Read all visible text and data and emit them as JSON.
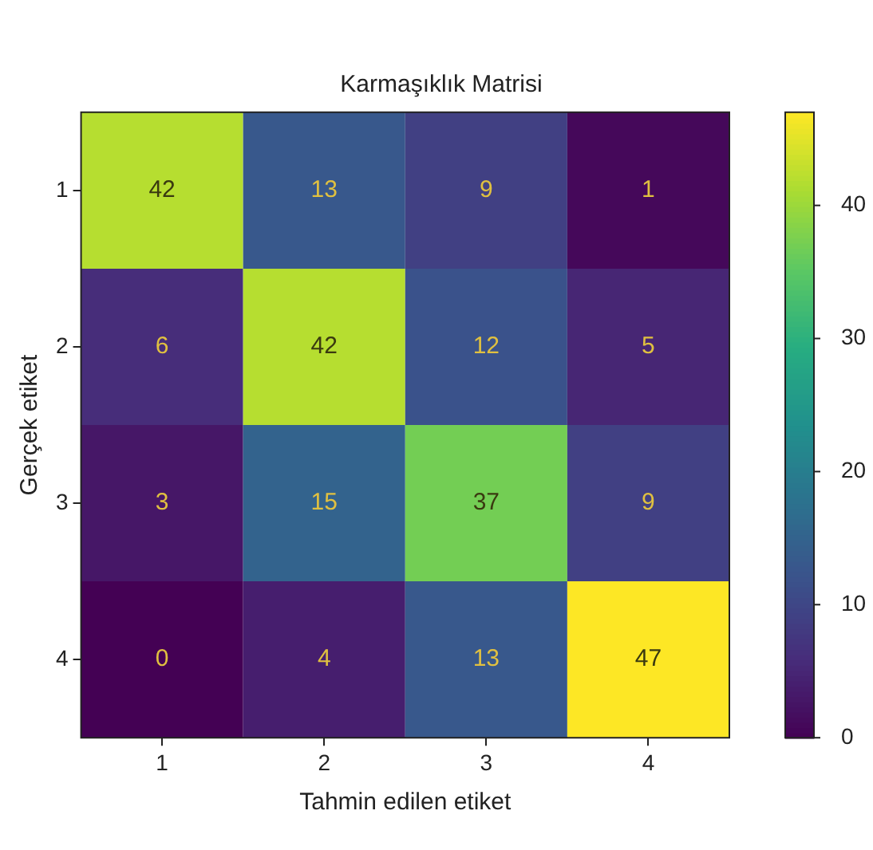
{
  "chart_data": {
    "type": "heatmap",
    "title": "Karmaşıklık Matrisi",
    "xlabel": "Tahmin edilen etiket",
    "ylabel": "Gerçek etiket",
    "categories": [
      "1",
      "2",
      "3",
      "4"
    ],
    "y_categories": [
      "1",
      "2",
      "3",
      "4"
    ],
    "cells": [
      [
        42,
        13,
        9,
        1
      ],
      [
        6,
        42,
        12,
        5
      ],
      [
        3,
        15,
        37,
        9
      ],
      [
        0,
        4,
        13,
        47
      ]
    ],
    "clim": [
      0,
      47
    ],
    "cticks": [
      0,
      10,
      20,
      30,
      40
    ],
    "data_labels": true
  }
}
